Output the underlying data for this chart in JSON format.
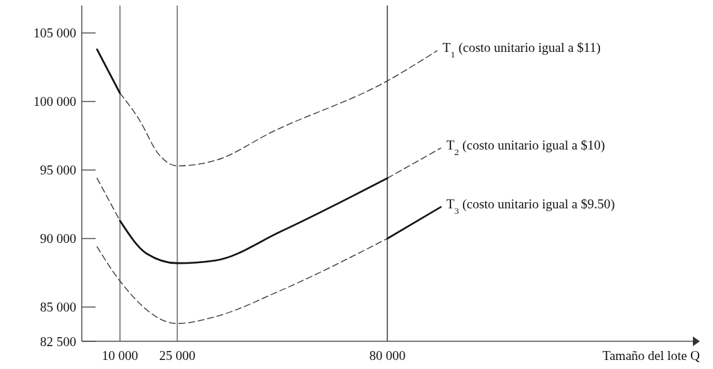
{
  "chart_data": {
    "type": "line",
    "xlabel": "Tamaño del lote Q",
    "xlim": [
      0,
      160000
    ],
    "xticks": [
      {
        "value": 10000,
        "label": "10 000"
      },
      {
        "value": 25000,
        "label": "25 000"
      },
      {
        "value": 80000,
        "label": "80 000"
      }
    ],
    "ylim": [
      82500,
      107000
    ],
    "yticks": [
      {
        "value": 82500,
        "label": "82 500"
      },
      {
        "value": 85000,
        "label": "85 000"
      },
      {
        "value": 90000,
        "label": "90 000"
      },
      {
        "value": 95000,
        "label": "95 000"
      },
      {
        "value": 100000,
        "label": "100 000"
      },
      {
        "value": 105000,
        "label": "105 000"
      }
    ],
    "grid": false,
    "marker": "none",
    "series": [
      {
        "name": "T$_{1}$ (costo unitario igual a $11)",
        "color": "#333333",
        "line_style": "dashed",
        "x": [
          10000,
          15000,
          20000,
          25000,
          35000,
          50000,
          80000,
          93000
        ],
        "values": [
          100600,
          98700,
          96200,
          95300,
          95700,
          97800,
          101500,
          103700
        ]
      },
      {
        "color": "#333333",
        "line_style": "dashed",
        "x": [
          4000,
          10000
        ],
        "values": [
          94400,
          91300
        ]
      },
      {
        "name": "T$_{2}$ (costo unitario igual a $10)",
        "color": "#333333",
        "line_style": "dashed",
        "x": [
          80000,
          94000
        ],
        "values": [
          94400,
          96600
        ]
      },
      {
        "color": "#333333",
        "line_style": "dashed",
        "x": [
          4000,
          10000,
          25000,
          35000,
          52000,
          80000
        ],
        "values": [
          89400,
          86900,
          83800,
          84300,
          86200,
          90000
        ]
      },
      {
        "color": "#111111",
        "line_style": "solid",
        "x": [
          4000,
          10000
        ],
        "values": [
          103800,
          100600
        ]
      },
      {
        "color": "#111111",
        "line_style": "solid",
        "x": [
          10000,
          17000,
          25000,
          35000,
          52000,
          80000
        ],
        "values": [
          91300,
          88900,
          88200,
          88400,
          90500,
          94400
        ]
      },
      {
        "name": "T$_{3}$ (costo unitario igual a $9.50)",
        "color": "#111111",
        "line_style": "solid",
        "x": [
          80000,
          94000
        ],
        "values": [
          90000,
          92300
        ]
      }
    ],
    "ref_lines": [
      {
        "axis": "x",
        "value": 10000,
        "color": "#555555"
      },
      {
        "axis": "x",
        "value": 25000,
        "color": "#555555"
      },
      {
        "axis": "x",
        "value": 80000,
        "color": "#222222"
      }
    ]
  }
}
